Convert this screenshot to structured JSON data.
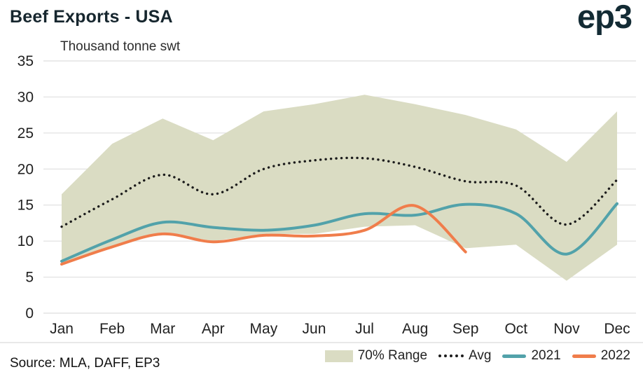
{
  "header": {
    "title": "Beef Exports - USA",
    "logo": "ep3"
  },
  "footer": {
    "source": "Source: MLA, DAFF, EP3"
  },
  "colors": {
    "band": "#dadcc3",
    "avg": "#1c1c1c",
    "y2021": "#52a2aa",
    "y2022": "#f07d4b",
    "grid": "#e4e4e4",
    "axis_text": "#222222",
    "title_text": "#16262e"
  },
  "chart_data": {
    "type": "line",
    "title": "Beef Exports - USA",
    "subtitle": "Thousand tonne swt",
    "categories": [
      "Jan",
      "Feb",
      "Mar",
      "Apr",
      "May",
      "Jun",
      "Jul",
      "Aug",
      "Sep",
      "Oct",
      "Nov",
      "Dec"
    ],
    "ylim": [
      0,
      35
    ],
    "yticks": [
      0,
      5,
      10,
      15,
      20,
      25,
      30,
      35
    ],
    "grid": true,
    "legend_position": "bottom",
    "band": {
      "name": "70% Range",
      "color": "#dadcc3",
      "upper": [
        16.5,
        23.5,
        27,
        24,
        28,
        29,
        30.3,
        29,
        27.5,
        25.5,
        21,
        28
      ],
      "lower": [
        7,
        9,
        11.2,
        10,
        11,
        11,
        12,
        12.2,
        9,
        9.5,
        4.5,
        9.5
      ]
    },
    "series": [
      {
        "name": "Avg",
        "style": "dotted",
        "color": "#1c1c1c",
        "values": [
          12,
          15.8,
          19.2,
          16.5,
          20,
          21.2,
          21.5,
          20.3,
          18.3,
          17.7,
          12.3,
          18.5
        ]
      },
      {
        "name": "2021",
        "style": "solid",
        "color": "#52a2aa",
        "values": [
          7.2,
          10.2,
          12.6,
          11.9,
          11.5,
          12.2,
          13.8,
          13.6,
          15.1,
          13.8,
          8.2,
          15.2
        ]
      },
      {
        "name": "2022",
        "style": "solid",
        "color": "#f07d4b",
        "values": [
          6.8,
          9.2,
          11.0,
          9.9,
          10.8,
          10.7,
          11.5,
          14.9,
          8.5,
          null,
          null,
          null
        ]
      }
    ],
    "legend": [
      {
        "label": "70% Range",
        "type": "band",
        "color": "#dadcc3"
      },
      {
        "label": "Avg",
        "type": "dotted",
        "color": "#1c1c1c"
      },
      {
        "label": "2021",
        "type": "line",
        "color": "#52a2aa"
      },
      {
        "label": "2022",
        "type": "line",
        "color": "#f07d4b"
      }
    ]
  }
}
